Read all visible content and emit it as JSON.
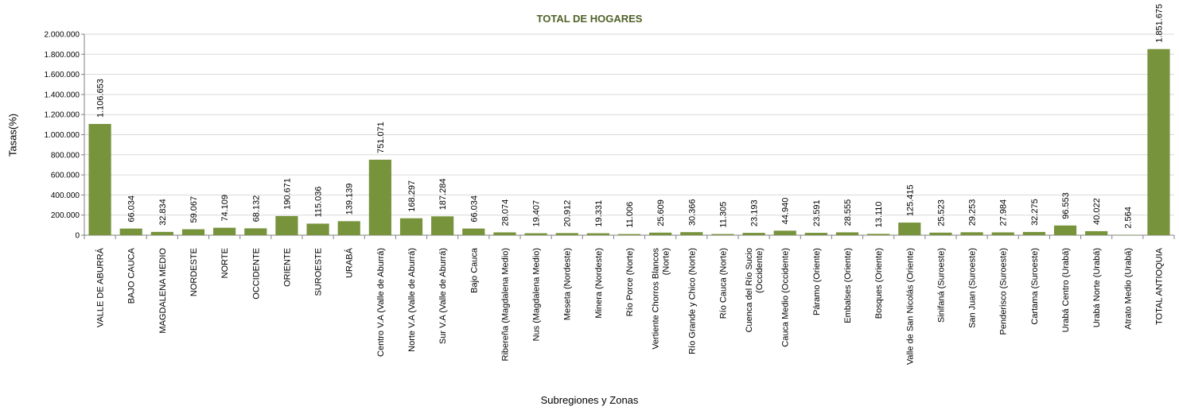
{
  "chart_data": {
    "type": "bar",
    "title": "TOTAL DE HOGARES",
    "xlabel": "Subregiones y Zonas",
    "ylabel": "Tasas(%)",
    "ylim": [
      0,
      2000000
    ],
    "ytick_labels": [
      "0",
      "200.000",
      "400.000",
      "600.000",
      "800.000",
      "1.000.000",
      "1.200.000",
      "1.400.000",
      "1.600.000",
      "1.800.000",
      "2.000.000"
    ],
    "ytick_values": [
      0,
      200000,
      400000,
      600000,
      800000,
      1000000,
      1200000,
      1400000,
      1600000,
      1800000,
      2000000
    ],
    "grid": true,
    "bar_color": "#77933c",
    "title_color": "#4f6228",
    "categories": [
      [
        "VALLE DE ABURRÁ"
      ],
      [
        "BAJO CAUCA"
      ],
      [
        "MAGDALENA MEDIO"
      ],
      [
        "NORDESTE"
      ],
      [
        "NORTE"
      ],
      [
        "OCCIDENTE"
      ],
      [
        "ORIENTE"
      ],
      [
        "SUROESTE"
      ],
      [
        "URABÁ"
      ],
      [
        "Centro V.A (Valle de Aburrá)"
      ],
      [
        "Norte V.A (Valle de Aburrá)"
      ],
      [
        "Sur V.A (Valle de Aburrá)"
      ],
      [
        "Bajo Cauca"
      ],
      [
        "Ribereña  (Magdalena Medio)"
      ],
      [
        "Nus  (Magdalena Medio)"
      ],
      [
        "Meseta  (Nordeste)"
      ],
      [
        "Minera  (Nordeste)"
      ],
      [
        "Río Porce   (Norte)"
      ],
      [
        "Vertiente Chorros Blancos",
        "(Norte)"
      ],
      [
        "Río Grande y Chico  (Norte)"
      ],
      [
        "Río Cauca  (Norte)"
      ],
      [
        "Cuenca del Río Sucio",
        "(Occidente)"
      ],
      [
        "Cauca Medio  (Occidente)"
      ],
      [
        "Páramo  (Oriente)"
      ],
      [
        "Embalses  (Oriente)"
      ],
      [
        "Bosques  (Oriente)"
      ],
      [
        "Valle de San Nicolás  (Oriente)"
      ],
      [
        "Sinifaná  (Suroeste)"
      ],
      [
        "San Juan  (Suroeste)"
      ],
      [
        "Penderisco  (Suroeste)"
      ],
      [
        "Cartama  (Suroeste)"
      ],
      [
        "Urabá Centro  (Urabá)"
      ],
      [
        "Urabá Norte  (Urabá)"
      ],
      [
        "Atrato Medio  (Urabá)"
      ],
      [
        "TOTAL ANTIOQUIA"
      ]
    ],
    "values": [
      1106653,
      66034,
      32834,
      59067,
      74109,
      68132,
      190671,
      115036,
      139139,
      751071,
      168297,
      187284,
      66034,
      28074,
      19407,
      20912,
      19331,
      11006,
      25609,
      30366,
      11305,
      23193,
      44940,
      23591,
      28555,
      13110,
      125415,
      25523,
      29253,
      27984,
      32275,
      96553,
      40022,
      2564,
      1851675
    ],
    "data_labels": [
      "1.106.653",
      "66.034",
      "32.834",
      "59.067",
      "74.109",
      "68.132",
      "190.671",
      "115.036",
      "139.139",
      "751.071",
      "168.297",
      "187.284",
      "66.034",
      "28.074",
      "19.407",
      "20.912",
      "19.331",
      "11.006",
      "25.609",
      "30.366",
      "11.305",
      "23.193",
      "44.940",
      "23.591",
      "28.555",
      "13.110",
      "125.415",
      "25.523",
      "29.253",
      "27.984",
      "32.275",
      "96.553",
      "40.022",
      "2.564",
      "1.851.675"
    ]
  }
}
